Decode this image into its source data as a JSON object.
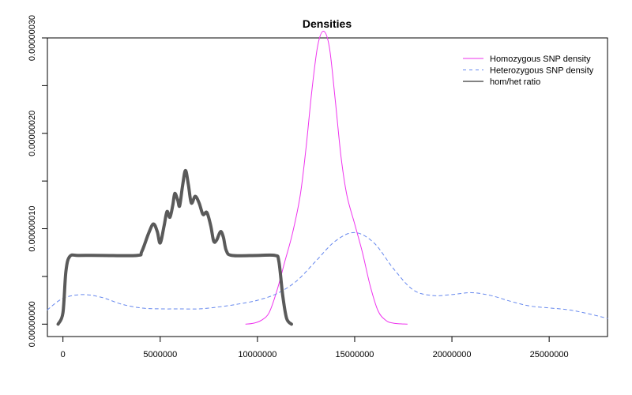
{
  "chart_data": {
    "type": "line",
    "title": "Densities",
    "xlabel": "",
    "ylabel": "",
    "xlim": [
      -800000,
      28000000
    ],
    "ylim": [
      -1.3e-08,
      3e-07
    ],
    "x_ticks": [
      0,
      5000000,
      10000000,
      15000000,
      20000000,
      25000000
    ],
    "x_tick_labels": [
      "0",
      "5000000",
      "10000000",
      "15000000",
      "20000000",
      "25000000"
    ],
    "y_ticks": [
      0,
      1e-07,
      2e-07,
      3e-07
    ],
    "y_tick_labels": [
      "0.00000000",
      "0.00000010",
      "0.00000020",
      "0.00000030"
    ],
    "grid": false,
    "legend_position": "top-right",
    "series": [
      {
        "name": "Homozygous SNP density",
        "color": "#ee33ee",
        "style": "solid",
        "width": 1,
        "points": [
          [
            9400000,
            0.0
          ],
          [
            9800000,
            1e-09
          ],
          [
            10200000,
            4e-09
          ],
          [
            10600000,
            1.2e-08
          ],
          [
            11000000,
            3.5e-08
          ],
          [
            11400000,
            6.5e-08
          ],
          [
            11800000,
            9.5e-08
          ],
          [
            12200000,
            1.35e-07
          ],
          [
            12500000,
            1.85e-07
          ],
          [
            12800000,
            2.45e-07
          ],
          [
            13100000,
            2.92e-07
          ],
          [
            13400000,
            3.07e-07
          ],
          [
            13700000,
            2.9e-07
          ],
          [
            14000000,
            2.35e-07
          ],
          [
            14300000,
            1.75e-07
          ],
          [
            14600000,
            1.35e-07
          ],
          [
            15000000,
            1.05e-07
          ],
          [
            15400000,
            7.5e-08
          ],
          [
            15800000,
            4e-08
          ],
          [
            16200000,
            1.4e-08
          ],
          [
            16600000,
            4e-09
          ],
          [
            17000000,
            1e-09
          ],
          [
            17700000,
            0.0
          ]
        ]
      },
      {
        "name": "Heterozygous SNP density",
        "color": "#6688ee",
        "style": "dashed",
        "width": 1,
        "points": [
          [
            -800000,
            1.5e-08
          ],
          [
            0,
            2.7e-08
          ],
          [
            1000000,
            3.1e-08
          ],
          [
            2000000,
            2.8e-08
          ],
          [
            3000000,
            2.1e-08
          ],
          [
            4000000,
            1.7e-08
          ],
          [
            5000000,
            1.6e-08
          ],
          [
            6000000,
            1.6e-08
          ],
          [
            7000000,
            1.6e-08
          ],
          [
            8000000,
            1.8e-08
          ],
          [
            9000000,
            2.1e-08
          ],
          [
            10000000,
            2.5e-08
          ],
          [
            11000000,
            3.2e-08
          ],
          [
            12000000,
            4.5e-08
          ],
          [
            13000000,
            6.6e-08
          ],
          [
            14000000,
            8.7e-08
          ],
          [
            15000000,
            9.6e-08
          ],
          [
            16000000,
            8.5e-08
          ],
          [
            17000000,
            5.8e-08
          ],
          [
            18000000,
            3.6e-08
          ],
          [
            19000000,
            3e-08
          ],
          [
            20000000,
            3.1e-08
          ],
          [
            21000000,
            3.3e-08
          ],
          [
            22000000,
            3e-08
          ],
          [
            23000000,
            2.4e-08
          ],
          [
            24000000,
            1.9e-08
          ],
          [
            25000000,
            1.7e-08
          ],
          [
            26000000,
            1.5e-08
          ],
          [
            27000000,
            1.1e-08
          ],
          [
            28000000,
            6e-09
          ]
        ]
      },
      {
        "name": "hom/het ratio",
        "color": "#5a5a5a",
        "style": "solid",
        "width": 4,
        "points": [
          [
            -250000,
            0.0
          ],
          [
            0,
            1.2e-08
          ],
          [
            150000,
            5.5e-08
          ],
          [
            350000,
            7.1e-08
          ],
          [
            800000,
            7.2e-08
          ],
          [
            2000000,
            7.2e-08
          ],
          [
            3800000,
            7.2e-08
          ],
          [
            4050000,
            7.6e-08
          ],
          [
            4400000,
            9.5e-08
          ],
          [
            4650000,
            1.05e-07
          ],
          [
            4850000,
            9.7e-08
          ],
          [
            5000000,
            8.5e-08
          ],
          [
            5200000,
            1.03e-07
          ],
          [
            5350000,
            1.18e-07
          ],
          [
            5500000,
            1.12e-07
          ],
          [
            5650000,
            1.25e-07
          ],
          [
            5750000,
            1.37e-07
          ],
          [
            5900000,
            1.3e-07
          ],
          [
            6000000,
            1.24e-07
          ],
          [
            6150000,
            1.45e-07
          ],
          [
            6300000,
            1.61e-07
          ],
          [
            6450000,
            1.46e-07
          ],
          [
            6600000,
            1.27e-07
          ],
          [
            6800000,
            1.34e-07
          ],
          [
            7000000,
            1.27e-07
          ],
          [
            7200000,
            1.15e-07
          ],
          [
            7400000,
            1.17e-07
          ],
          [
            7600000,
            1.03e-07
          ],
          [
            7750000,
            8.7e-08
          ],
          [
            7900000,
            8.8e-08
          ],
          [
            8100000,
            9.7e-08
          ],
          [
            8250000,
            9.1e-08
          ],
          [
            8400000,
            7.7e-08
          ],
          [
            8700000,
            7.2e-08
          ],
          [
            10000000,
            7.2e-08
          ],
          [
            10900000,
            7.2e-08
          ],
          [
            11100000,
            6.6e-08
          ],
          [
            11300000,
            3e-08
          ],
          [
            11500000,
            6e-09
          ],
          [
            11750000,
            0.0
          ]
        ]
      }
    ]
  }
}
